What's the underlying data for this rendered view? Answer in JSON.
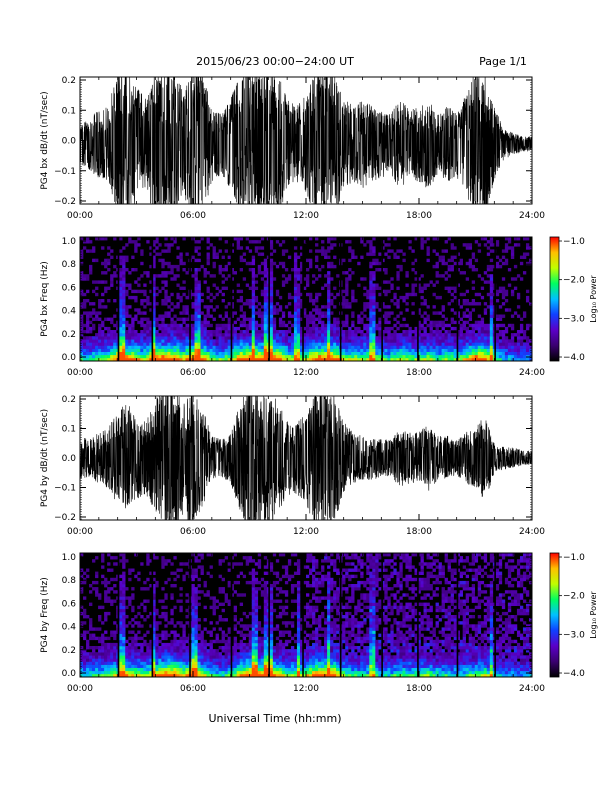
{
  "header": {
    "date_range": "2015/06/23  00:00−24:00 UT",
    "page": "Page 1/1"
  },
  "colors": {
    "waveform": "#000000",
    "spectrogram_background": "#000000",
    "colorbar": [
      "#000000",
      "#3a0070",
      "#5a00c8",
      "#1040ff",
      "#00c0ff",
      "#00ff60",
      "#c0ff00",
      "#ffc000",
      "#ff0000"
    ]
  },
  "xaxis": {
    "ticks": [
      "00:00",
      "06:00",
      "12:00",
      "18:00",
      "24:00"
    ],
    "label": "Universal Time (hh:mm)"
  },
  "chart_data": [
    {
      "type": "line",
      "ylabel": "PG4 bx dB/dt (nT/sec)",
      "xlim": [
        0,
        24
      ],
      "ylim": [
        -0.2,
        0.2
      ],
      "yticks": [
        "0.2",
        "0.1",
        "0.0",
        "−0.1",
        "−0.2"
      ],
      "envelope": {
        "hours": [
          0,
          0.5,
          1,
          1.5,
          2,
          2.5,
          3,
          3.5,
          4,
          4.5,
          5,
          5.5,
          6,
          6.5,
          7,
          7.5,
          8,
          8.5,
          9,
          9.5,
          10,
          10.5,
          11,
          11.5,
          12,
          12.5,
          13,
          13.5,
          14,
          14.5,
          15,
          15.5,
          16,
          16.5,
          17,
          17.5,
          18,
          18.5,
          19,
          19.5,
          20,
          20.5,
          21,
          21.5,
          22,
          22.5,
          23,
          23.5,
          24
        ],
        "amplitude": [
          0.05,
          0.07,
          0.09,
          0.1,
          0.2,
          0.2,
          0.15,
          0.12,
          0.2,
          0.2,
          0.2,
          0.14,
          0.2,
          0.2,
          0.1,
          0.08,
          0.12,
          0.2,
          0.2,
          0.2,
          0.2,
          0.2,
          0.12,
          0.1,
          0.13,
          0.2,
          0.2,
          0.2,
          0.12,
          0.1,
          0.12,
          0.1,
          0.09,
          0.08,
          0.12,
          0.09,
          0.1,
          0.12,
          0.08,
          0.1,
          0.09,
          0.13,
          0.2,
          0.2,
          0.1,
          0.04,
          0.03,
          0.02,
          0.02
        ]
      }
    },
    {
      "type": "heatmap",
      "ylabel": "PG4 bx Freq (Hz)",
      "xlim": [
        0,
        24
      ],
      "ylim": [
        0,
        1.0
      ],
      "yticks": [
        "1.0",
        "0.8",
        "0.6",
        "0.4",
        "0.2",
        "0.0"
      ],
      "colorbar": {
        "label": "Log₁₀ Power",
        "range": [
          -4.0,
          -1.0
        ],
        "ticks": [
          "−1.0",
          "−2.0",
          "−3.0",
          "−4.0"
        ]
      },
      "burst_hours": [
        2.2,
        3.9,
        6.2,
        9.2,
        9.8,
        10.1,
        11.5,
        13.2,
        15.5,
        21.8
      ],
      "gap_hours": [
        2.0,
        3.8,
        5.8,
        8.0,
        10.0,
        11.8,
        13.8,
        16.0,
        17.9,
        20.0,
        22.0
      ]
    },
    {
      "type": "line",
      "ylabel": "PG4 by dB/dt (nT/sec)",
      "xlim": [
        0,
        24
      ],
      "ylim": [
        -0.2,
        0.2
      ],
      "yticks": [
        "0.2",
        "0.1",
        "0.0",
        "−0.1",
        "−0.2"
      ],
      "envelope": {
        "hours": [
          0,
          0.5,
          1,
          1.5,
          2,
          2.5,
          3,
          3.5,
          4,
          4.5,
          5,
          5.5,
          6,
          6.5,
          7,
          7.5,
          8,
          8.5,
          9,
          9.5,
          10,
          10.5,
          11,
          11.5,
          12,
          12.5,
          13,
          13.5,
          14,
          14.5,
          15,
          15.5,
          16,
          16.5,
          17,
          17.5,
          18,
          18.5,
          19,
          19.5,
          20,
          20.5,
          21,
          21.5,
          22,
          22.5,
          23,
          23.5,
          24
        ],
        "amplitude": [
          0.06,
          0.05,
          0.07,
          0.08,
          0.13,
          0.15,
          0.12,
          0.1,
          0.16,
          0.2,
          0.2,
          0.15,
          0.2,
          0.14,
          0.06,
          0.05,
          0.07,
          0.15,
          0.2,
          0.2,
          0.2,
          0.15,
          0.1,
          0.1,
          0.12,
          0.2,
          0.2,
          0.18,
          0.1,
          0.07,
          0.06,
          0.06,
          0.05,
          0.05,
          0.08,
          0.07,
          0.07,
          0.09,
          0.06,
          0.06,
          0.05,
          0.07,
          0.08,
          0.12,
          0.04,
          0.03,
          0.03,
          0.02,
          0.02
        ]
      }
    },
    {
      "type": "heatmap",
      "ylabel": "PG4 by Freq (Hz)",
      "xlim": [
        0,
        24
      ],
      "ylim": [
        0,
        1.0
      ],
      "yticks": [
        "1.0",
        "0.8",
        "0.6",
        "0.4",
        "0.2",
        "0.0"
      ],
      "colorbar": {
        "label": "Log₁₀ Power",
        "range": [
          -4.0,
          -1.0
        ],
        "ticks": [
          "−1.0",
          "−2.0",
          "−3.0",
          "−4.0"
        ]
      },
      "burst_hours": [
        2.2,
        3.9,
        6.1,
        9.3,
        9.9,
        10.1,
        11.6,
        13.2,
        15.5,
        21.8
      ],
      "gap_hours": [
        2.0,
        3.8,
        5.8,
        8.0,
        10.0,
        11.8,
        13.8,
        16.0,
        17.9,
        20.0,
        22.0
      ]
    }
  ]
}
